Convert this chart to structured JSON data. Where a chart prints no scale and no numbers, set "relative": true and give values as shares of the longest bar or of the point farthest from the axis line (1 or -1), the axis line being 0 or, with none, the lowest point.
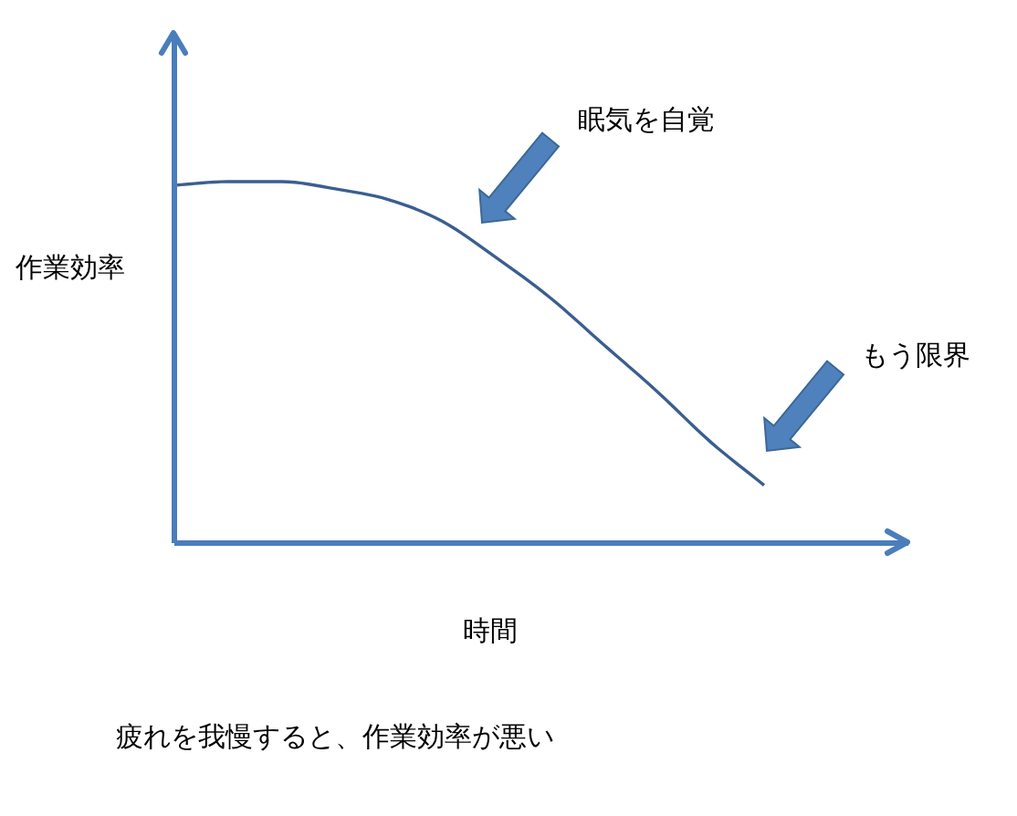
{
  "chart_data": {
    "type": "line",
    "relative": true,
    "xlabel": "時間",
    "ylabel": "作業効率",
    "annotations": [
      "眠気を自覚",
      "もう限界",
      "疲れを我慢すると、作業効率が悪い"
    ],
    "categories": [
      null,
      null,
      null,
      null,
      null,
      null,
      null,
      null,
      null,
      null,
      null,
      null
    ],
    "series": [
      {
        "color": "#3b5e91",
        "values": [
          0.99,
          1.0,
          1.0,
          0.98,
          0.95,
          0.89,
          0.79,
          0.68,
          0.55,
          0.42,
          0.28,
          0.16
        ]
      }
    ]
  }
}
